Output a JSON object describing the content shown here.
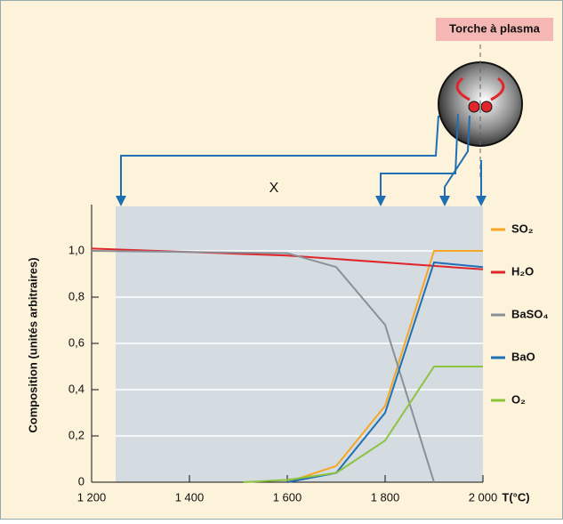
{
  "chart_data": {
    "type": "line",
    "y_label": "Composition (unités arbitraires)",
    "x_label": "T(°C)",
    "annotations": {
      "torch": "Torche à plasma",
      "x_mark": "X"
    },
    "xlim": [
      1200,
      2000
    ],
    "xticks": [
      {
        "value": 1200,
        "label": "1 200"
      },
      {
        "value": 1400,
        "label": "1 400"
      },
      {
        "value": 1600,
        "label": "1 600"
      },
      {
        "value": 1800,
        "label": "1 800"
      },
      {
        "value": 2000,
        "label": "2 000"
      }
    ],
    "ylim": [
      0,
      1.2
    ],
    "yticks": [
      0,
      {
        "value": 0.2,
        "label": "0,2"
      },
      {
        "value": 0.4,
        "label": "0,4"
      },
      {
        "value": 0.6,
        "label": "0,6"
      },
      {
        "value": 0.8,
        "label": "0,8"
      },
      {
        "value": 1,
        "label": "1,0"
      }
    ],
    "grid": true,
    "series": [
      {
        "name": "SO₂",
        "color": "#f5a623",
        "x": [
          1600,
          1700,
          1800,
          1900,
          2000
        ],
        "values": [
          0,
          0.07,
          0.33,
          1.0,
          1.0
        ]
      },
      {
        "name": "H₂O",
        "color": "#e0262b",
        "x": [
          1200,
          1600,
          2000
        ],
        "values": [
          1.01,
          0.98,
          0.92
        ]
      },
      {
        "name": "BaSO₄",
        "color": "#8a9196",
        "x": [
          1200,
          1600,
          1700,
          1800,
          1900
        ],
        "values": [
          1.0,
          0.99,
          0.93,
          0.68,
          0
        ]
      },
      {
        "name": "BaO",
        "color": "#1f6fb5",
        "x": [
          1600,
          1700,
          1800,
          1900,
          2000
        ],
        "values": [
          0,
          0.04,
          0.3,
          0.95,
          0.93
        ]
      },
      {
        "name": "O₂",
        "color": "#8cc43f",
        "x": [
          1510,
          1600,
          1700,
          1800,
          1900,
          2000
        ],
        "values": [
          0,
          0.01,
          0.04,
          0.18,
          0.5,
          0.5
        ]
      }
    ]
  }
}
